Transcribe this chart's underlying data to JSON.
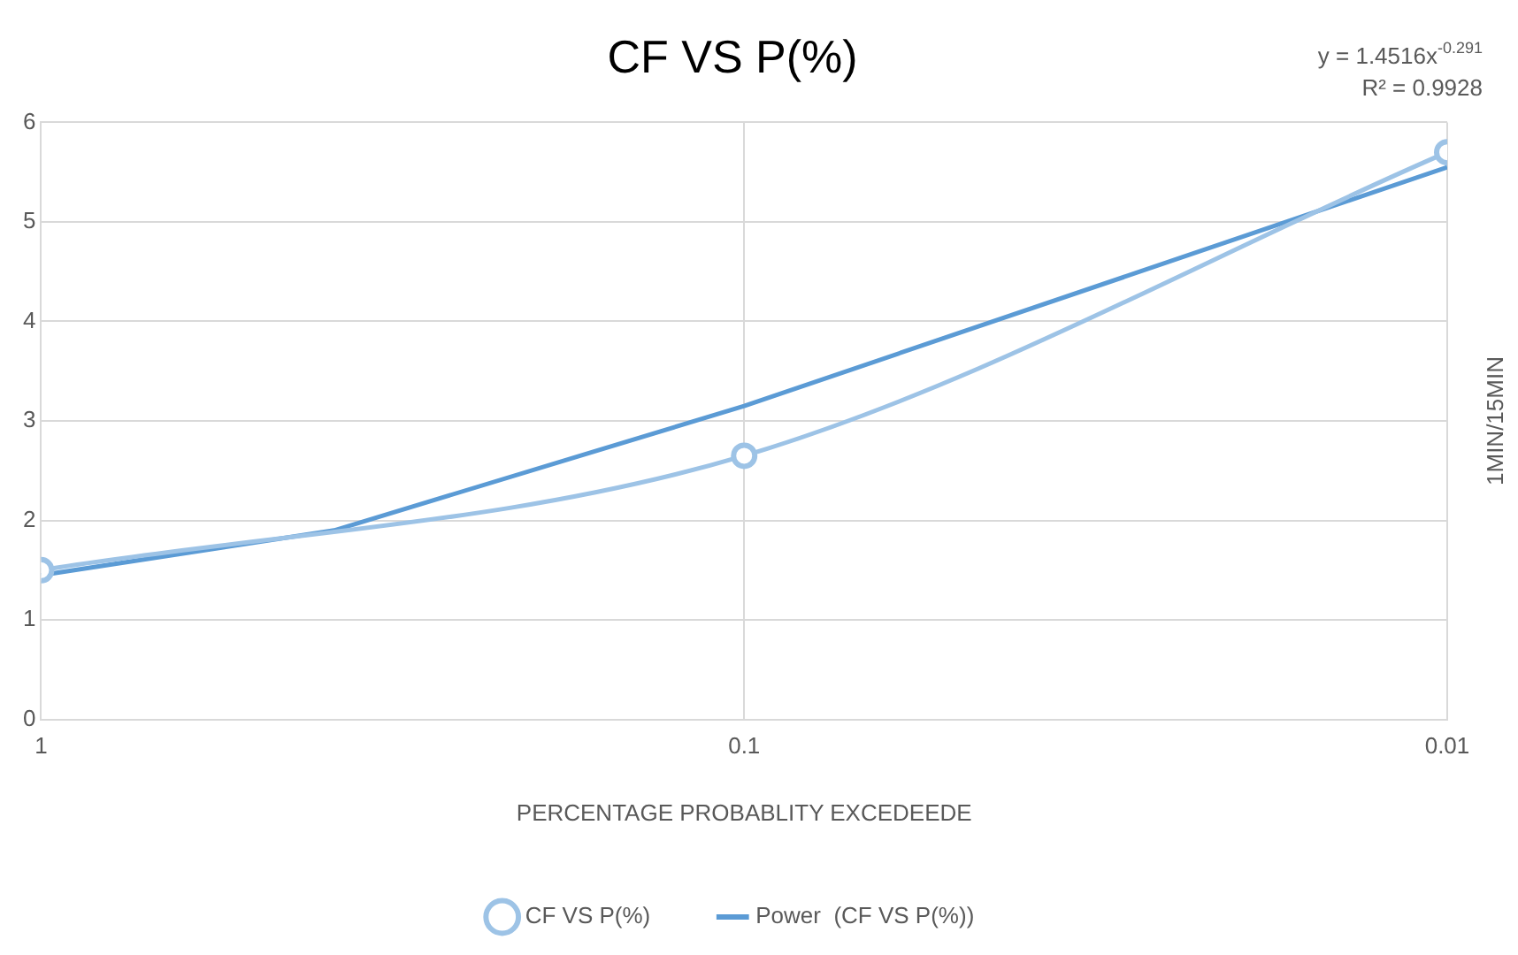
{
  "chart_data": {
    "type": "line",
    "title": "CF VS P(%)",
    "xlabel": "PERCENTAGE PROBABLITY EXCEDEEDE",
    "ylabel": "1MIN/15MIN",
    "annotations": [
      "y = 1.4516x$^{-0.291}$",
      "R² = 0.9928"
    ],
    "log": "x",
    "xlim": [
      1,
      0.01
    ],
    "xticks": [
      1,
      0.1,
      0.01
    ],
    "ylim": [
      0,
      6
    ],
    "yticks": [
      0,
      1,
      2,
      3,
      4,
      5,
      6
    ],
    "grid": true,
    "legend": "bottom",
    "series": [
      {
        "name": "CF VS P(%)",
        "color": "#9dc3e6",
        "x": [
          1,
          0.1,
          0.01
        ],
        "values": [
          1.5,
          2.65,
          5.7
        ],
        "marker": "circle"
      },
      {
        "name": "Power  (CF VS P(%))",
        "color": "#5b9bd5",
        "x": [
          1,
          0.383,
          0.1,
          0.01
        ],
        "values": [
          1.45,
          1.9,
          3.15,
          5.55
        ],
        "marker": "none"
      }
    ]
  }
}
